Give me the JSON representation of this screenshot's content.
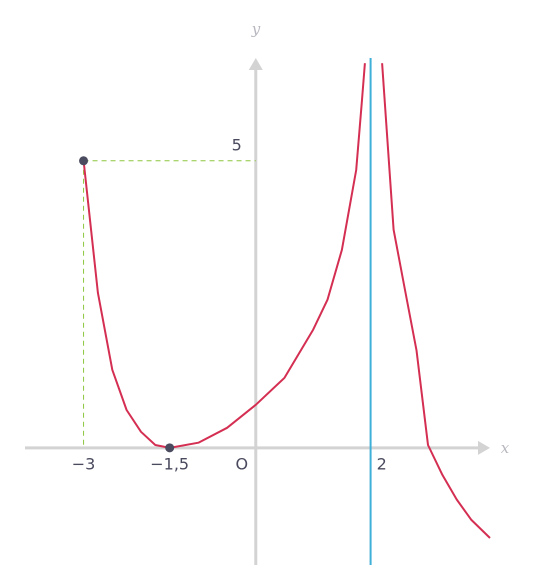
{
  "chart_data": {
    "type": "line",
    "x_label": "x",
    "y_label": "y",
    "x": [
      -3,
      -2.75,
      -2.5,
      -2.25,
      -2,
      -1.75,
      -1.5,
      -1,
      -0.5,
      0,
      0.5,
      1,
      1.25,
      1.5,
      1.75,
      1.85,
      1.9,
      2,
      2.2,
      2.4,
      2.6,
      2.8,
      3,
      3.25,
      3.5,
      3.75,
      4.08
    ],
    "series": [
      {
        "color": "#d42f52",
        "values": [
          5,
          2.7,
          1.36,
          0.66,
          0.28,
          0.05,
          0,
          0.09,
          0.35,
          0.75,
          1.22,
          2.06,
          2.58,
          3.45,
          4.84,
          6.06,
          6.7,
          null,
          6.7,
          3.8,
          2.75,
          1.7,
          0.05,
          -0.47,
          -0.9,
          -1.25,
          -1.57
        ]
      }
    ],
    "points": {
      "x": [
        -3,
        -1.5
      ],
      "y": [
        5,
        0
      ],
      "color": "#4b4b60"
    },
    "asymptote_x": 2,
    "asymptote_color": "#3fb0d8",
    "guide_color": "#8dc63f",
    "axis_color": "#d3d3d3",
    "xlim": [
      -4.02,
      4.08
    ],
    "ylim": [
      -2.04,
      6.79
    ],
    "xticks": [
      {
        "value": -3,
        "label": "−3"
      },
      {
        "value": -1.5,
        "label": "−1,5"
      },
      {
        "value": 0,
        "label": "O"
      },
      {
        "value": 2,
        "label": "2"
      }
    ],
    "yticks": [
      5
    ]
  }
}
